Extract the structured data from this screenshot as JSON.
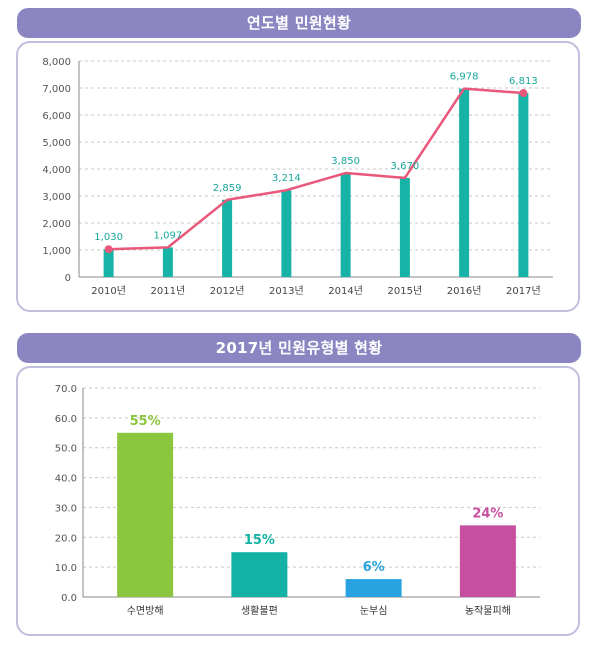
{
  "charts": [
    {
      "header": "연도별 민원현황",
      "chart_data": {
        "type": "bar+line",
        "title": "연도별 민원현황",
        "categories": [
          "2010년",
          "2011년",
          "2012년",
          "2013년",
          "2014년",
          "2015년",
          "2016년",
          "2017년"
        ],
        "values": [
          1030,
          1097,
          2859,
          3214,
          3850,
          3670,
          6978,
          6813
        ],
        "value_labels": [
          "1,030",
          "1,097",
          "2,859",
          "3,214",
          "3,850",
          "3,670",
          "6,978",
          "6,813"
        ],
        "yticks": [
          "0",
          "1,000",
          "2,000",
          "3,000",
          "4,000",
          "5,000",
          "6,000",
          "7,000",
          "8,000"
        ],
        "ylim": [
          0,
          8000
        ],
        "grid": true,
        "bar_color": "#17b3a6",
        "line_color": "#e9577a",
        "label_color": "#17a79b"
      }
    },
    {
      "header": "2017년 민원유형별 현황",
      "chart_data": {
        "type": "bar",
        "title": "2017년 민원유형별 현황",
        "categories": [
          "수면방해",
          "생활불편",
          "눈부심",
          "농작물피해"
        ],
        "values": [
          55,
          15,
          6,
          24
        ],
        "value_labels": [
          "55%",
          "15%",
          "6%",
          "24%"
        ],
        "yticks": [
          "0.0",
          "10.0",
          "20.0",
          "30.0",
          "40.0",
          "50.0",
          "60.0",
          "70.0"
        ],
        "ylim": [
          0,
          70
        ],
        "grid": true,
        "colors": [
          "#8cc63f",
          "#13b2a4",
          "#29a3df",
          "#c64f9f"
        ]
      }
    }
  ]
}
